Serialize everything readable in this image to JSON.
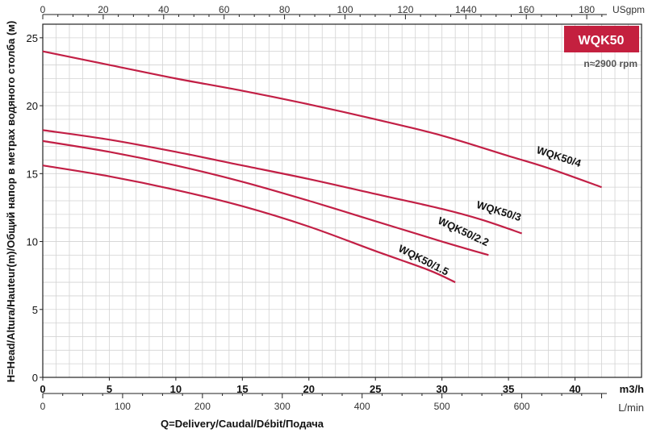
{
  "chart_data": {
    "type": "line",
    "title": "WQK50",
    "subtitle": "n≈2900 rpm",
    "xlabel": "Q=Delivery/Caudal/Débit/Подача",
    "ylabel": "H=Head/Altura/Hauteur(m)/Общий напор в метрах водяного столба (м)",
    "x_unit": "m3/h",
    "xlim": [
      0,
      45
    ],
    "ylim": [
      0,
      26
    ],
    "x_ticks": [
      "0",
      "5",
      "10",
      "15",
      "20",
      "25",
      "30",
      "35",
      "40"
    ],
    "y_ticks": [
      "0",
      "5",
      "10",
      "15",
      "20",
      "25"
    ],
    "top_axis": {
      "unit": "USgpm",
      "ticks": [
        "0",
        "20",
        "40",
        "60",
        "80",
        "100",
        "120",
        "1440",
        "160",
        "180"
      ]
    },
    "bottom_axis_lmin": {
      "unit": "L/min",
      "ticks": [
        "0",
        "100",
        "200",
        "300",
        "400",
        "500",
        "600"
      ]
    },
    "grid": true,
    "series": [
      {
        "name": "WQK50/4",
        "x": [
          0,
          5,
          10,
          15,
          20,
          25,
          30,
          35,
          38,
          42
        ],
        "y": [
          24.0,
          23.0,
          22.0,
          21.1,
          20.1,
          19.0,
          17.8,
          16.3,
          15.4,
          14.0
        ]
      },
      {
        "name": "WQK50/3",
        "x": [
          0,
          5,
          10,
          15,
          20,
          25,
          30,
          33,
          36
        ],
        "y": [
          18.2,
          17.5,
          16.6,
          15.6,
          14.6,
          13.5,
          12.4,
          11.6,
          10.6
        ]
      },
      {
        "name": "WQK50/2.2",
        "x": [
          0,
          5,
          10,
          15,
          20,
          25,
          30,
          33.5
        ],
        "y": [
          17.4,
          16.6,
          15.6,
          14.4,
          13.0,
          11.5,
          10.0,
          9.0
        ]
      },
      {
        "name": "WQK50/1.5",
        "x": [
          0,
          5,
          10,
          15,
          20,
          25,
          29,
          31
        ],
        "y": [
          15.6,
          14.8,
          13.8,
          12.6,
          11.1,
          9.3,
          7.9,
          7.0
        ]
      }
    ]
  },
  "colors": {
    "curve": "#c21f45",
    "badge": "#c4203f",
    "grid": "#d3d3d3",
    "axis": "#222222"
  }
}
